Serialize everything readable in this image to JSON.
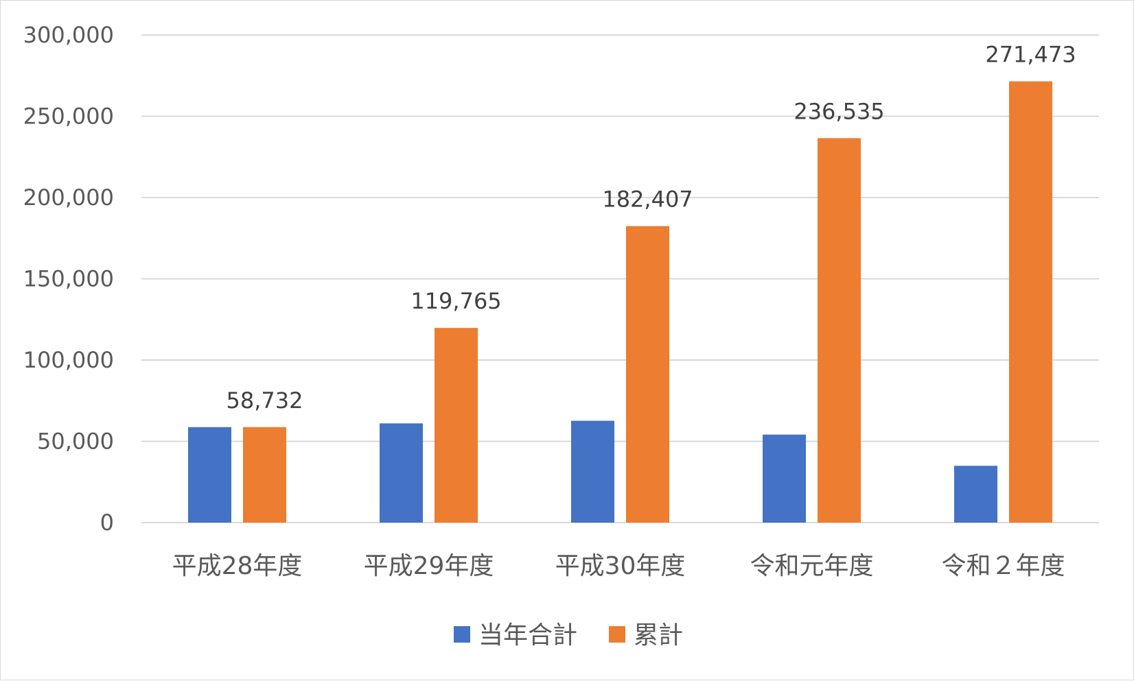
{
  "chart_data": {
    "type": "bar",
    "categories": [
      "平成28年度",
      "平成29年度",
      "平成30年度",
      "令和元年度",
      "令和２年度"
    ],
    "series": [
      {
        "name": "当年合計",
        "color": "#4472c4",
        "values": [
          58732,
          61033,
          62642,
          54128,
          34938
        ]
      },
      {
        "name": "累計",
        "color": "#ed7d31",
        "values": [
          58732,
          119765,
          182407,
          236535,
          271473
        ],
        "data_labels": [
          "58,732",
          "119,765",
          "182,407",
          "236,535",
          "271,473"
        ]
      }
    ],
    "yticks": [
      "0",
      "50,000",
      "100,000",
      "150,000",
      "200,000",
      "250,000",
      "300,000"
    ],
    "ylim": [
      0,
      300000
    ],
    "grid": true,
    "gridline_color": "#d9d9d9",
    "legend_position": "bottom"
  }
}
